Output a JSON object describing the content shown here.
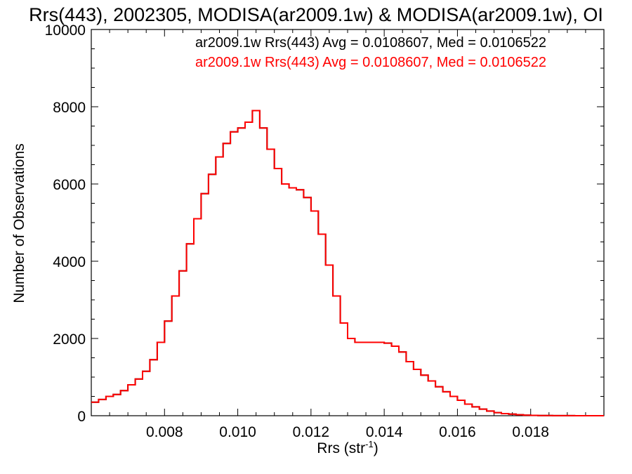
{
  "chart_data": {
    "type": "line",
    "title": "Rrs(443), 2002305, MODISA(ar2009.1w) & MODISA(ar2009.1w), OI",
    "xlabel": "Rrs (str",
    "xlabel_sup": "-1",
    "xlabel_end": ")",
    "ylabel": "Number of Observations",
    "xlim": [
      0.006,
      0.02
    ],
    "ylim": [
      0,
      10000
    ],
    "xticks": [
      0.008,
      0.01,
      0.012,
      0.014,
      0.016,
      0.018
    ],
    "xtick_labels": [
      "0.008",
      "0.010",
      "0.012",
      "0.014",
      "0.016",
      "0.018"
    ],
    "yticks": [
      0,
      2000,
      4000,
      6000,
      8000,
      10000
    ],
    "ytick_labels": [
      "0",
      "2000",
      "4000",
      "6000",
      "8000",
      "10000"
    ],
    "grid": false,
    "colors": {
      "black": "#000000",
      "red": "#ff0000"
    },
    "annotations": [
      {
        "text": "ar2009.1w Rrs(443) Avg = 0.0108607, Med = 0.0106522",
        "color": "#000000"
      },
      {
        "text": "ar2009.1w Rrs(443) Avg = 0.0108607, Med = 0.0106522",
        "color": "#ff0000"
      }
    ],
    "series": [
      {
        "style": "histogram-step",
        "x": [
          0.006,
          0.0062,
          0.0064,
          0.0066,
          0.0068,
          0.007,
          0.0072,
          0.0074,
          0.0076,
          0.0078,
          0.008,
          0.0082,
          0.0084,
          0.0086,
          0.0088,
          0.009,
          0.0092,
          0.0094,
          0.0096,
          0.0098,
          0.01,
          0.0102,
          0.0104,
          0.0106,
          0.0108,
          0.011,
          0.0112,
          0.0114,
          0.0116,
          0.0118,
          0.012,
          0.0122,
          0.0124,
          0.0126,
          0.0128,
          0.013,
          0.0132,
          0.0134,
          0.0136,
          0.0138,
          0.014,
          0.0142,
          0.0144,
          0.0146,
          0.0148,
          0.015,
          0.0152,
          0.0154,
          0.0156,
          0.0158,
          0.016,
          0.0162,
          0.0164,
          0.0166,
          0.0168,
          0.017,
          0.0172,
          0.0174,
          0.0176,
          0.0178,
          0.018,
          0.0182,
          0.0184,
          0.0186,
          0.0188,
          0.019,
          0.0192,
          0.0194,
          0.0196,
          0.0198
        ],
        "y": [
          350,
          420,
          500,
          550,
          650,
          800,
          950,
          1150,
          1450,
          1900,
          2450,
          3100,
          3750,
          4450,
          5100,
          5750,
          6250,
          6700,
          7050,
          7350,
          7450,
          7600,
          7900,
          7450,
          6900,
          6400,
          6000,
          5900,
          5850,
          5650,
          5300,
          4700,
          3900,
          3100,
          2400,
          2000,
          1900,
          1900,
          1900,
          1900,
          1880,
          1800,
          1650,
          1400,
          1200,
          1050,
          900,
          750,
          620,
          500,
          400,
          300,
          230,
          170,
          120,
          80,
          55,
          40,
          25,
          15,
          10,
          5,
          3,
          2,
          1,
          1,
          0,
          0,
          0,
          0
        ]
      }
    ]
  }
}
